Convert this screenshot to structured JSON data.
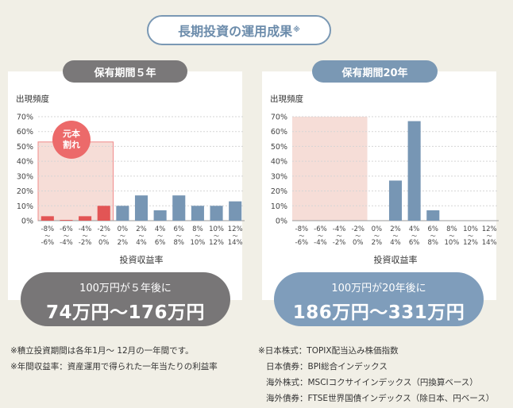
{
  "title": "長期投資の運用成果",
  "title_mark": "※",
  "panels": [
    {
      "label": "保有期間５年",
      "ylabel": "出現頻度",
      "xlabel": "投資収益率",
      "callout_line1": "100万円が５年後に",
      "callout_line2": "74万円〜176万円"
    },
    {
      "label": "保有期間20年",
      "ylabel": "出現頻度",
      "xlabel": "投資収益率",
      "callout_line1": "100万円が20年後に",
      "callout_line2": "186万円〜331万円"
    }
  ],
  "badge": {
    "line1": "元本",
    "line2": "割れ"
  },
  "notes_left": [
    "※積立投資期間は各年1月〜 12月の一年間です。",
    "※年間収益率：資産運用で得られた一年当たりの利益率"
  ],
  "notes_right": [
    "※日本株式：TOPIX配当込み株価指数",
    "日本債券：BPI総合インデックス",
    "海外株式：MSCIコクサイインデックス（円換算ベース）",
    "海外債券：FTSE世界国債インデックス（除日本、円ベース）"
  ],
  "colors": {
    "loss": "#e25555",
    "gain": "#7796b4",
    "loss_bg": "#f6ddd7",
    "axis": "#bbbbbb"
  },
  "chart_data": [
    {
      "type": "bar",
      "title": "保有期間５年",
      "ylabel": "出現頻度",
      "xlabel": "投資収益率",
      "ylim": [
        0,
        70
      ],
      "yticks": [
        "0%",
        "10%",
        "20%",
        "30%",
        "40%",
        "50%",
        "60%",
        "70%"
      ],
      "categories": [
        [
          "-8%",
          "〜",
          "-6%"
        ],
        [
          "-6%",
          "〜",
          "-4%"
        ],
        [
          "-4%",
          "〜",
          "-2%"
        ],
        [
          "-2%",
          "〜",
          "0%"
        ],
        [
          "0%",
          "〜",
          "2%"
        ],
        [
          "2%",
          "〜",
          "4%"
        ],
        [
          "4%",
          "〜",
          "6%"
        ],
        [
          "6%",
          "〜",
          "8%"
        ],
        [
          "8%",
          "〜",
          "10%"
        ],
        [
          "10%",
          "〜",
          "12%"
        ],
        [
          "12%",
          "〜",
          "14%"
        ]
      ],
      "values": [
        3,
        0.5,
        3,
        10,
        10,
        17,
        7,
        17,
        10,
        10,
        13
      ],
      "loss_count": 4,
      "loss_region_top": 53
    },
    {
      "type": "bar",
      "title": "保有期間20年",
      "ylabel": "出現頻度",
      "xlabel": "投資収益率",
      "ylim": [
        0,
        70
      ],
      "yticks": [
        "0%",
        "10%",
        "20%",
        "30%",
        "40%",
        "50%",
        "60%",
        "70%"
      ],
      "categories": [
        [
          "-8%",
          "〜",
          "-6%"
        ],
        [
          "-6%",
          "〜",
          "-4%"
        ],
        [
          "-4%",
          "〜",
          "-2%"
        ],
        [
          "-2%",
          "〜",
          "0%"
        ],
        [
          "0%",
          "〜",
          "2%"
        ],
        [
          "2%",
          "〜",
          "4%"
        ],
        [
          "4%",
          "〜",
          "6%"
        ],
        [
          "6%",
          "〜",
          "8%"
        ],
        [
          "8%",
          "〜",
          "10%"
        ],
        [
          "10%",
          "〜",
          "12%"
        ],
        [
          "12%",
          "〜",
          "14%"
        ]
      ],
      "values": [
        0,
        0,
        0,
        0,
        0,
        27,
        67,
        7,
        0,
        0,
        0
      ],
      "loss_count": 4,
      "loss_region_top": 70
    }
  ]
}
